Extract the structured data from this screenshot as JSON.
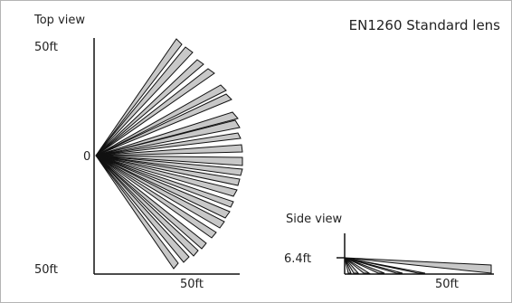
{
  "title": "EN1260 Standard lens",
  "top_view": {
    "label": "Top view",
    "y_top_label": "50ft",
    "y_bottom_label": "50ft",
    "origin_label": "0",
    "x_label": "50ft",
    "zone_count": 22
  },
  "side_view": {
    "label": "Side view",
    "height_label": "6.4ft",
    "x_label": "50ft"
  },
  "colors": {
    "beam_fill": "#c8c8c8",
    "beam_stroke": "#111111",
    "axis": "#111111",
    "frame": "#b4b4b4"
  }
}
